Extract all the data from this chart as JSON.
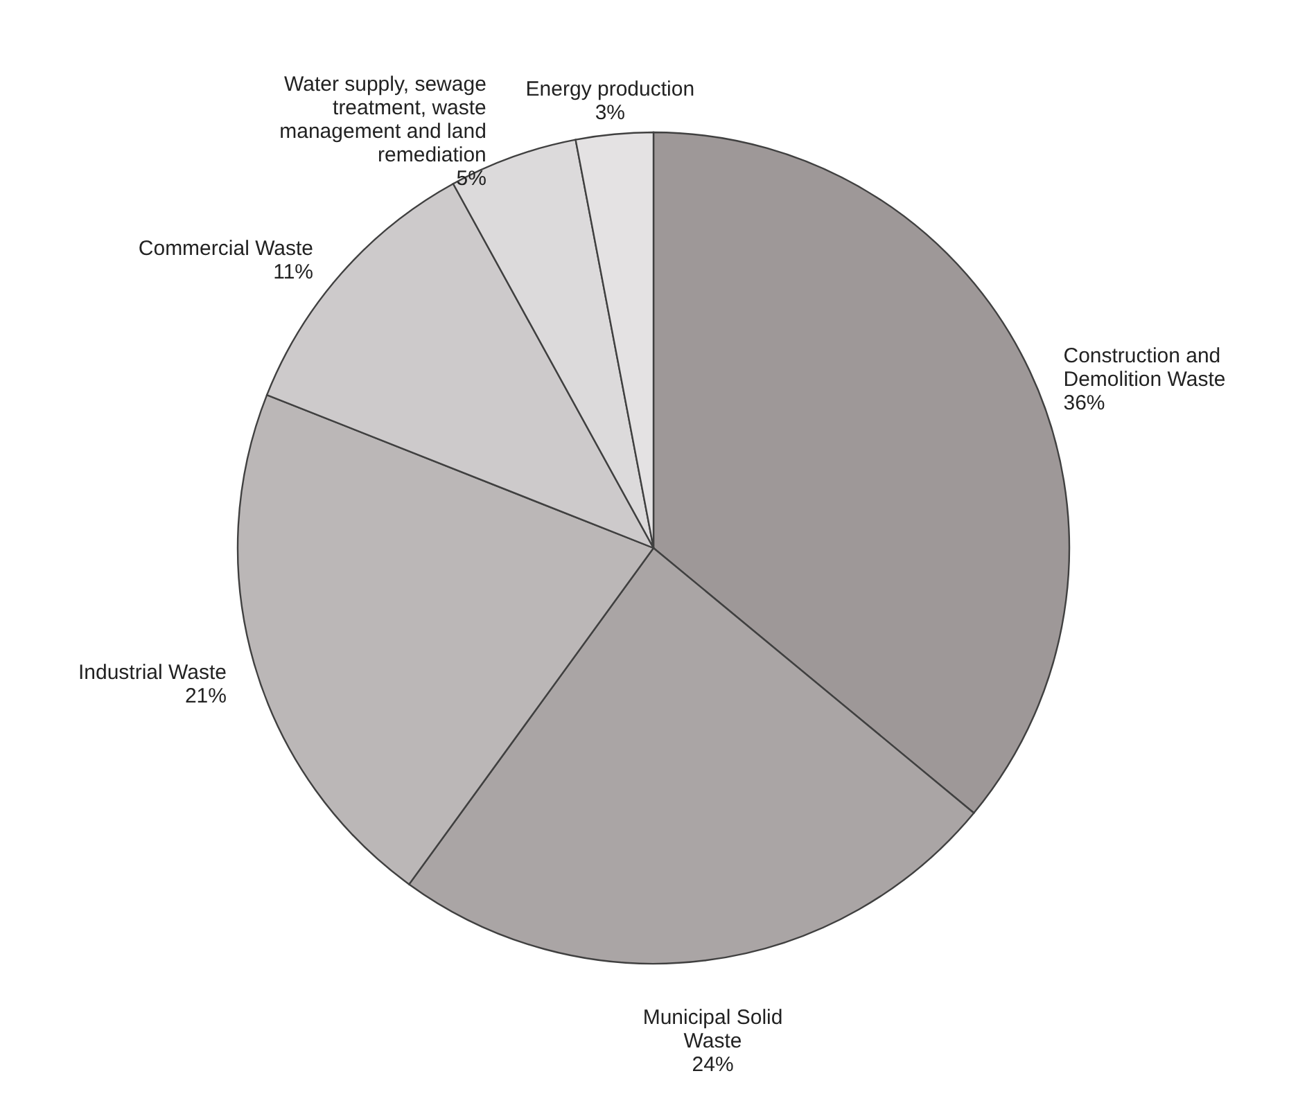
{
  "chart_data": {
    "type": "pie",
    "categories": [
      "Construction and Demolition Waste",
      "Municipal Solid Waste",
      "Industrial Waste",
      "Commercial Waste",
      "Water supply, sewage treatment, waste management and land remediation",
      "Energy production"
    ],
    "values": [
      36,
      24,
      21,
      11,
      5,
      3
    ],
    "value_labels": [
      "36%",
      "24%",
      "21%",
      "11%",
      "5%",
      "3%"
    ],
    "colors": [
      "#9e9898",
      "#aaa5a5",
      "#bbb7b7",
      "#cdcacb",
      "#dcdadb",
      "#e4e2e3"
    ]
  }
}
